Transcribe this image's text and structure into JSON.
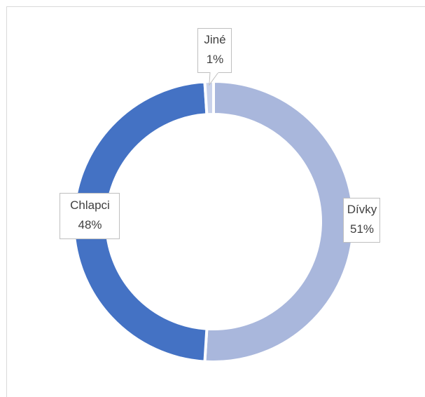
{
  "chart_data": {
    "type": "donut",
    "categories": [
      "Dívky",
      "Chlapci",
      "Jiné"
    ],
    "values": [
      51,
      48,
      1
    ],
    "value_labels": [
      "51%",
      "48%",
      "1%"
    ],
    "colors": [
      "#a9b7dc",
      "#4472c4",
      "#c9d2ea"
    ]
  }
}
